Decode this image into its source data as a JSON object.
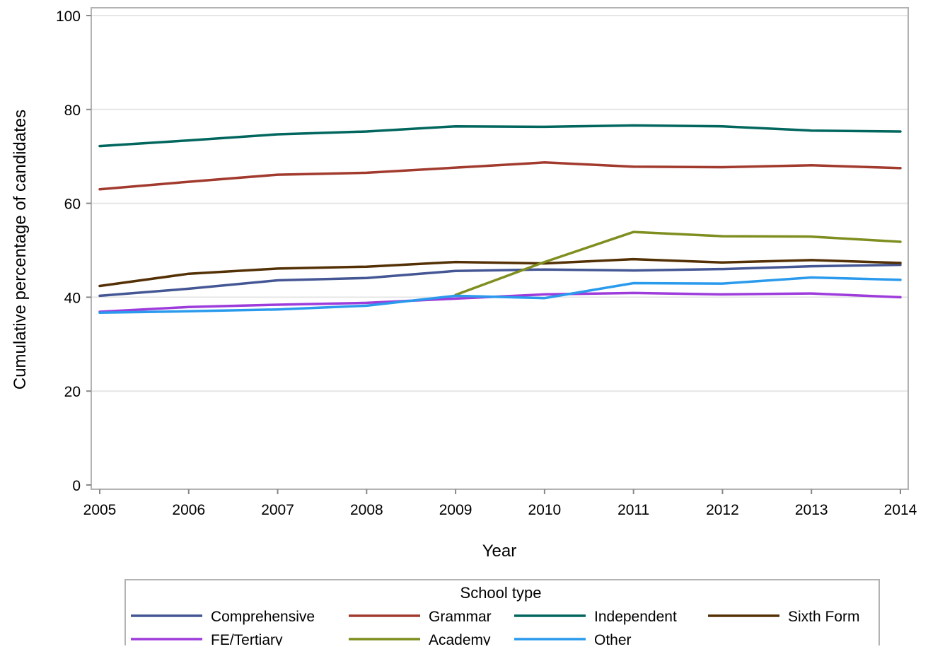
{
  "chart_data": {
    "type": "line",
    "title": "",
    "xlabel": "Year",
    "ylabel": "Cumulative percentage of candidates",
    "x": [
      2005,
      2006,
      2007,
      2008,
      2009,
      2010,
      2011,
      2012,
      2013,
      2014
    ],
    "xlim": [
      2005,
      2014
    ],
    "ylim": [
      0,
      100
    ],
    "y_ticks": [
      0,
      20,
      40,
      60,
      80,
      100
    ],
    "grid": "horizontal",
    "legend": {
      "title": "School type",
      "position": "bottom"
    },
    "series": [
      {
        "name": "Comprehensive",
        "color": "#445694",
        "values": [
          40.3,
          41.8,
          43.6,
          44.1,
          45.6,
          45.9,
          45.7,
          46.0,
          46.6,
          46.9
        ]
      },
      {
        "name": "Grammar",
        "color": "#A23A2E",
        "values": [
          63.0,
          64.6,
          66.1,
          66.5,
          67.6,
          68.7,
          67.8,
          67.7,
          68.1,
          67.5
        ]
      },
      {
        "name": "Independent",
        "color": "#01665E",
        "values": [
          72.2,
          73.4,
          74.7,
          75.3,
          76.4,
          76.3,
          76.6,
          76.4,
          75.5,
          75.3
        ]
      },
      {
        "name": "Sixth Form",
        "color": "#543005",
        "values": [
          42.4,
          45.0,
          46.1,
          46.5,
          47.5,
          47.2,
          48.1,
          47.4,
          47.9,
          47.3
        ]
      },
      {
        "name": "FE/Tertiary",
        "color": "#9D3CDB",
        "values": [
          36.9,
          37.9,
          38.4,
          38.8,
          39.7,
          40.6,
          40.9,
          40.6,
          40.8,
          40.0
        ]
      },
      {
        "name": "Academy",
        "color": "#7F8E1F",
        "values": [
          null,
          null,
          null,
          null,
          40.5,
          47.5,
          53.9,
          53.0,
          52.9,
          51.8
        ]
      },
      {
        "name": "Other",
        "color": "#2A9AED",
        "values": [
          36.7,
          37.0,
          37.4,
          38.2,
          40.3,
          39.8,
          43.0,
          42.9,
          44.2,
          43.7
        ]
      }
    ]
  }
}
